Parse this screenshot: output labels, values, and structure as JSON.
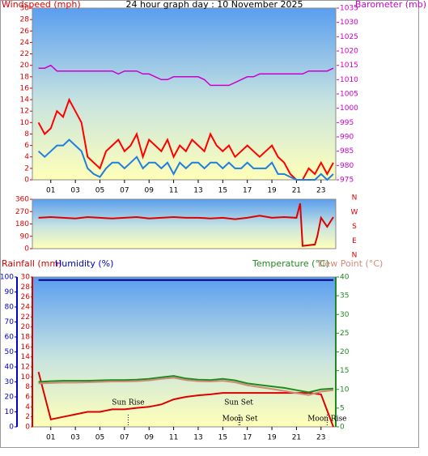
{
  "chart_data": [
    {
      "type": "line",
      "title": "24 hour graph day : 10 November 2025",
      "ylabel": "Windspeed (mph)",
      "y2label": "Barometer (mb)",
      "x": [
        0,
        0.5,
        1,
        1.5,
        2,
        2.5,
        3,
        3.5,
        4,
        4.5,
        5,
        5.5,
        6,
        6.5,
        7,
        7.5,
        8,
        8.5,
        9,
        9.5,
        10,
        10.5,
        11,
        11.5,
        12,
        12.5,
        13,
        13.5,
        14,
        14.5,
        15,
        15.5,
        16,
        16.5,
        17,
        17.5,
        18,
        18.5,
        19,
        19.5,
        20,
        20.5,
        21,
        21.5,
        22,
        22.5,
        23,
        23.5,
        24
      ],
      "xlim": [
        -0.5,
        24.2
      ],
      "xticks": [
        {
          "value": 1,
          "label": "01"
        },
        {
          "value": 3,
          "label": "03"
        },
        {
          "value": 5,
          "label": "05"
        },
        {
          "value": 7,
          "label": "07"
        },
        {
          "value": 9,
          "label": "09"
        },
        {
          "value": 11,
          "label": "11"
        },
        {
          "value": 13,
          "label": "13"
        },
        {
          "value": 15,
          "label": "15"
        },
        {
          "value": 17,
          "label": "17"
        },
        {
          "value": 19,
          "label": "19"
        },
        {
          "value": 21,
          "label": "21"
        },
        {
          "value": 23,
          "label": "23"
        }
      ],
      "ylim": [
        0,
        30
      ],
      "yticks": [
        0,
        2,
        4,
        6,
        8,
        10,
        12,
        14,
        16,
        18,
        20,
        22,
        24,
        26,
        28,
        30
      ],
      "y2lim": [
        975,
        1035
      ],
      "y2ticks": [
        975,
        980,
        985,
        990,
        995,
        1000,
        1005,
        1010,
        1015,
        1020,
        1025,
        1030,
        1035
      ],
      "series": [
        {
          "color": "#ff0000",
          "values": [
            10,
            8,
            9,
            12,
            11,
            14,
            12,
            10,
            4,
            3,
            2,
            5,
            6,
            7,
            5,
            6,
            8,
            4,
            7,
            6,
            5,
            7,
            4,
            6,
            5,
            7,
            6,
            5,
            8,
            6,
            5,
            6,
            4,
            5,
            6,
            5,
            4,
            5,
            6,
            4,
            3,
            1,
            0,
            0,
            2,
            1,
            3,
            1,
            3
          ]
        },
        {
          "color": "#1e7fe0",
          "values": [
            5,
            4,
            5,
            6,
            6,
            7,
            6,
            5,
            2,
            1,
            0.5,
            2,
            3,
            3,
            2,
            3,
            4,
            2,
            3,
            3,
            2,
            3,
            1,
            3,
            2,
            3,
            3,
            2,
            3,
            3,
            2,
            3,
            2,
            2,
            3,
            2,
            2,
            2,
            3,
            1,
            1,
            0.5,
            0,
            0,
            0,
            0,
            1,
            0,
            1
          ]
        },
        {
          "color": "#cc00cc",
          "axis": "y2",
          "values": [
            1014,
            1014,
            1015,
            1013,
            1013,
            1013,
            1013,
            1013,
            1013,
            1013,
            1013,
            1013,
            1013,
            1012,
            1013,
            1013,
            1013,
            1012,
            1012,
            1011,
            1010,
            1010,
            1011,
            1011,
            1011,
            1011,
            1011,
            1010,
            1008,
            1008,
            1008,
            1008,
            1009,
            1010,
            1011,
            1011,
            1012,
            1012,
            1012,
            1012,
            1012,
            1012,
            1012,
            1012,
            1013,
            1013,
            1013,
            1013,
            1014
          ]
        }
      ]
    },
    {
      "type": "line",
      "x": [
        0,
        1,
        2,
        3,
        4,
        5,
        6,
        7,
        8,
        9,
        10,
        11,
        12,
        13,
        14,
        15,
        16,
        17,
        18,
        19,
        20,
        21,
        21.3,
        21.5,
        22.5,
        22.7,
        23,
        23.5,
        24
      ],
      "xlim": [
        -0.5,
        24.2
      ],
      "ylim": [
        0,
        360
      ],
      "yticks": [
        0,
        90,
        180,
        270,
        360
      ],
      "y2lim": [
        0,
        360
      ],
      "y2ticks": [
        {
          "value": 360,
          "label": "N"
        },
        {
          "value": 270,
          "label": "W"
        },
        {
          "value": 180,
          "label": "S"
        },
        {
          "value": 90,
          "label": "E"
        },
        {
          "value": 0,
          "label": "N"
        }
      ],
      "series": [
        {
          "color": "#dd0000",
          "values": [
            225,
            230,
            225,
            220,
            230,
            225,
            220,
            225,
            230,
            220,
            225,
            230,
            225,
            225,
            220,
            225,
            215,
            225,
            240,
            225,
            230,
            225,
            330,
            20,
            30,
            90,
            225,
            160,
            230
          ]
        }
      ]
    },
    {
      "type": "line",
      "x": [
        0,
        1,
        2,
        3,
        4,
        5,
        6,
        7,
        8,
        9,
        10,
        11,
        12,
        13,
        14,
        15,
        16,
        17,
        18,
        19,
        20,
        21,
        22,
        23,
        24
      ],
      "xlim": [
        -0.5,
        24.2
      ],
      "xticks": [
        {
          "value": 1,
          "label": "01"
        },
        {
          "value": 3,
          "label": "03"
        },
        {
          "value": 5,
          "label": "05"
        },
        {
          "value": 7,
          "label": "07"
        },
        {
          "value": 9,
          "label": "09"
        },
        {
          "value": 11,
          "label": "11"
        },
        {
          "value": 13,
          "label": "13"
        },
        {
          "value": 15,
          "label": "15"
        },
        {
          "value": 17,
          "label": "17"
        },
        {
          "value": 19,
          "label": "19"
        },
        {
          "value": 21,
          "label": "21"
        },
        {
          "value": 23,
          "label": "23"
        }
      ],
      "ylim": [
        0,
        30
      ],
      "yticks": [
        0,
        2,
        4,
        6,
        8,
        10,
        12,
        14,
        16,
        18,
        20,
        22,
        24,
        26,
        28,
        30
      ],
      "humidity_lim": [
        0,
        100
      ],
      "humidity_ticks": [
        0,
        10,
        20,
        30,
        40,
        50,
        60,
        70,
        80,
        90,
        100
      ],
      "y2lim": [
        0,
        40
      ],
      "y2ticks": [
        0,
        5,
        10,
        15,
        20,
        25,
        30,
        35,
        40
      ],
      "series": [
        {
          "name": "Rainfall (mm)",
          "color": "#dd0000",
          "values": [
            11,
            1.5,
            2,
            2.5,
            3,
            3,
            3.5,
            3.5,
            3.8,
            4,
            4.5,
            5.5,
            6,
            6.3,
            6.5,
            6.8,
            6.8,
            6.8,
            6.8,
            6.8,
            6.8,
            6.8,
            6.8,
            6.5,
            0
          ]
        },
        {
          "name": "Humidity (%)",
          "color": "#000080",
          "axis": "humidity",
          "values": [
            98,
            98,
            98,
            98,
            98,
            98,
            98,
            98,
            98,
            98,
            98,
            98,
            98,
            98,
            98,
            98,
            98,
            98,
            98,
            98,
            98,
            98,
            98,
            98,
            98
          ]
        },
        {
          "name": "Temperature (°C)",
          "color": "#1f8a1f",
          "axis": "y2",
          "values": [
            12,
            12.2,
            12.3,
            12.3,
            12.3,
            12.4,
            12.5,
            12.5,
            12.6,
            12.8,
            13.2,
            13.6,
            12.9,
            12.6,
            12.5,
            12.8,
            12.4,
            11.6,
            11.2,
            10.8,
            10.4,
            9.8,
            9.2,
            10,
            10.2
          ]
        },
        {
          "name": "Dew Point (°C)",
          "color": "#d08a7a",
          "axis": "y2",
          "values": [
            11.6,
            11.7,
            11.8,
            11.8,
            11.9,
            12,
            12.1,
            12.1,
            12.2,
            12.4,
            12.8,
            13.1,
            12.5,
            12.2,
            12.1,
            12.3,
            11.9,
            11.1,
            10.6,
            10.1,
            9.6,
            9,
            8.5,
            9.4,
            9.8
          ]
        }
      ],
      "annotations": [
        {
          "text": "Sun Rise",
          "x": 7.3
        },
        {
          "text": "Sun Set",
          "x": 16.3
        },
        {
          "text": "Moon Set",
          "x": 16.4
        },
        {
          "text": "Moon Rise",
          "x": 23.5
        }
      ]
    }
  ]
}
